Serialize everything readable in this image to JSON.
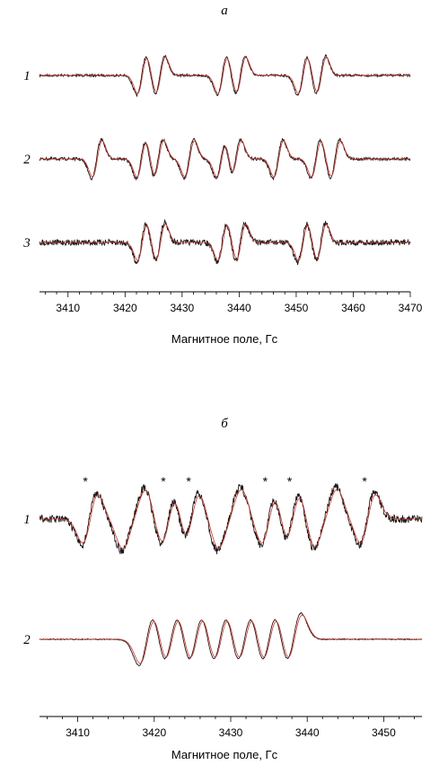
{
  "chart_data": [
    {
      "type": "line",
      "panel_label": "а",
      "xlabel": "Магнитное поле, Гс",
      "xlim": [
        3405,
        3470
      ],
      "xticks": [
        3410,
        3420,
        3430,
        3440,
        3450,
        3460,
        3470
      ],
      "grid": false,
      "legend": "none",
      "colors": {
        "experiment": "#1a1a1a",
        "simulation": "#d9342b"
      },
      "traces": [
        {
          "label": "1",
          "lines": [
            3424.5,
            3438.6,
            3452.7
          ],
          "splitting": 3.2,
          "noise": 0.012
        },
        {
          "label": "2",
          "lines": [
            3415.0,
            3422.8,
            3425.8,
            3431.2,
            3436.8,
            3439.4,
            3446.8,
            3453.4,
            3456.8
          ],
          "splitting": 0.0,
          "noise": 0.015
        },
        {
          "label": "3",
          "lines": [
            3424.5,
            3438.6,
            3452.7
          ],
          "splitting": 3.2,
          "noise": 0.03
        }
      ]
    },
    {
      "type": "line",
      "panel_label": "б",
      "xlabel": "Магнитное поле, Гс",
      "xlim": [
        3405,
        3455
      ],
      "xticks": [
        3410,
        3420,
        3430,
        3440,
        3450
      ],
      "grid": false,
      "legend": "none",
      "colors": {
        "experiment": "#1a1a1a",
        "simulation": "#d9342b"
      },
      "annotations": [
        {
          "text": "*",
          "x": 3411.0
        },
        {
          "text": "*",
          "x": 3421.2
        },
        {
          "text": "*",
          "x": 3424.5
        },
        {
          "text": "*",
          "x": 3434.5
        },
        {
          "text": "*",
          "x": 3437.7
        },
        {
          "text": "*",
          "x": 3447.5
        }
      ],
      "traces": [
        {
          "label": "1",
          "lines": [
            3411.5,
            3416.5,
            3418.0,
            3421.8,
            3424.8,
            3429.0,
            3430.5,
            3434.9,
            3438.0,
            3441.5,
            3443.0,
            3447.8
          ],
          "splitting": 0.0,
          "noise": 0.03
        },
        {
          "label": "2",
          "lines": [
            3419.0,
            3422.2,
            3425.4,
            3428.6,
            3431.8,
            3435.0,
            3438.2
          ],
          "splitting": 0.0,
          "noise": 0.004
        }
      ]
    }
  ]
}
